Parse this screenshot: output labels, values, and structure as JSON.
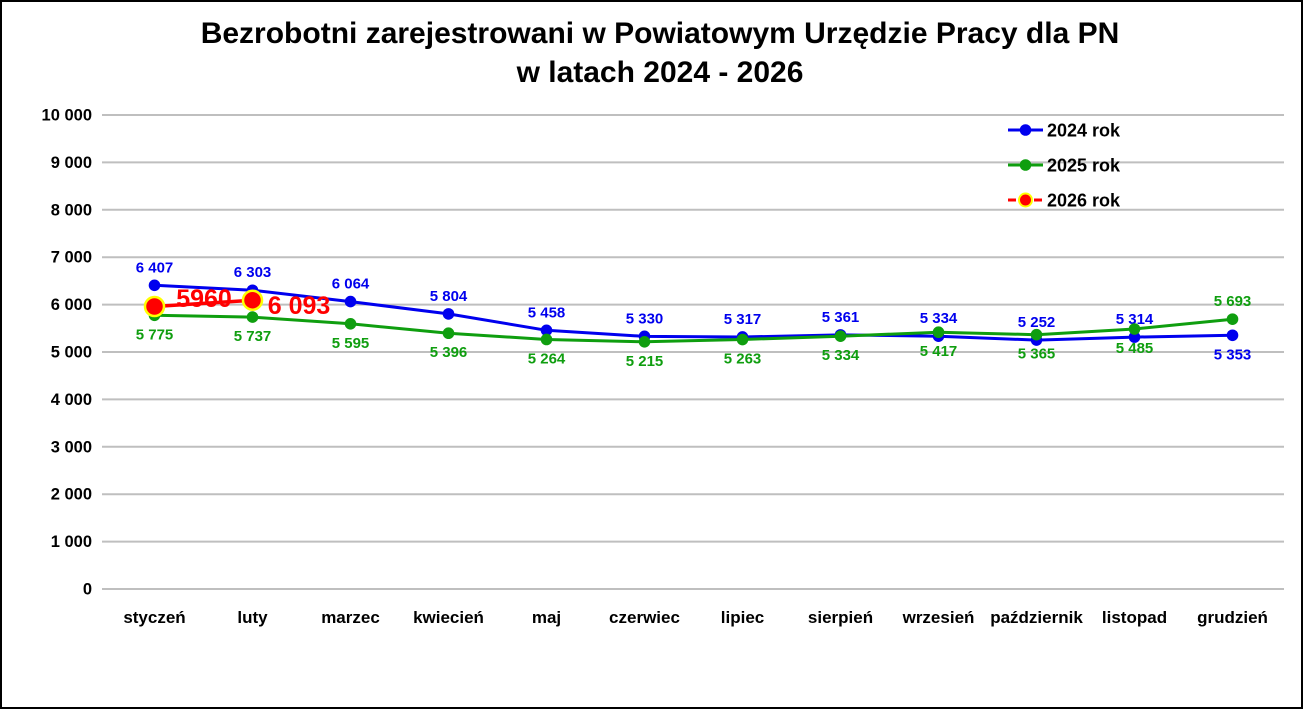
{
  "window": {
    "background": "#FFFFFF",
    "border_color": "#000000"
  },
  "chart_data": {
    "type": "line",
    "title_line1": "Bezrobotni zarejestrowani w Powiatowym Urzędzie Pracy dla PN",
    "title_line2": "w latach 2024 - 2026",
    "categories": [
      "styczeń",
      "luty",
      "marzec",
      "kwiecień",
      "maj",
      "czerwiec",
      "lipiec",
      "sierpień",
      "wrzesień",
      "październik",
      "listopad",
      "grudzień"
    ],
    "y_axis": {
      "min": 0,
      "max": 10000,
      "step": 1000,
      "tick_labels": [
        "0",
        "1 000",
        "2 000",
        "3 000",
        "4 000",
        "5 000",
        "6 000",
        "7 000",
        "8 000",
        "9 000",
        "10 000"
      ],
      "gridlines": true,
      "gridline_color": "#BFBFBF"
    },
    "series": [
      {
        "name": "2024 rok",
        "color": "#0000EE",
        "marker": "circle",
        "line_style": "solid",
        "values": [
          6407,
          6303,
          6064,
          5804,
          5458,
          5330,
          5317,
          5361,
          5334,
          5252,
          5314,
          5353
        ],
        "labels": [
          "6 407",
          "6 303",
          "6 064",
          "5 804",
          "5 458",
          "5 330",
          "5 317",
          "5 361",
          "5 334",
          "5 252",
          "5 314",
          "5 353"
        ],
        "label_sides": [
          "above",
          "above",
          "above",
          "above",
          "above",
          "above",
          "above",
          "above",
          "above",
          "above",
          "above",
          "below"
        ]
      },
      {
        "name": "2025 rok",
        "color": "#0F9E0F",
        "marker": "circle",
        "line_style": "solid",
        "values": [
          5775,
          5737,
          5595,
          5396,
          5264,
          5215,
          5263,
          5334,
          5417,
          5365,
          5485,
          5693
        ],
        "labels": [
          "5 775",
          "5 737",
          "5 595",
          "5 396",
          "5 264",
          "5 215",
          "5 263",
          "5 334",
          "5 417",
          "5 365",
          "5 485",
          "5 693"
        ],
        "label_sides": [
          "below",
          "below",
          "below",
          "below",
          "below",
          "below",
          "below",
          "below",
          "below",
          "below",
          "below",
          "above"
        ]
      },
      {
        "name": "2026 rok",
        "color": "#FF0000",
        "marker": "circle",
        "marker_outline": "#FFFF00",
        "line_style": "solid",
        "legend_dashed": true,
        "big_labels": true,
        "values": [
          5960,
          6093,
          null,
          null,
          null,
          null,
          null,
          null,
          null,
          null,
          null,
          null
        ],
        "labels": [
          "5960",
          "6 093",
          null,
          null,
          null,
          null,
          null,
          null,
          null,
          null,
          null,
          null
        ],
        "label_layout": [
          {
            "x": 202,
            "y": 305
          },
          {
            "x": 297,
            "y": 312
          }
        ]
      }
    ],
    "legend": {
      "position": "top-right",
      "entries": [
        "2024 rok",
        "2025 rok",
        "2026 rok"
      ]
    }
  }
}
